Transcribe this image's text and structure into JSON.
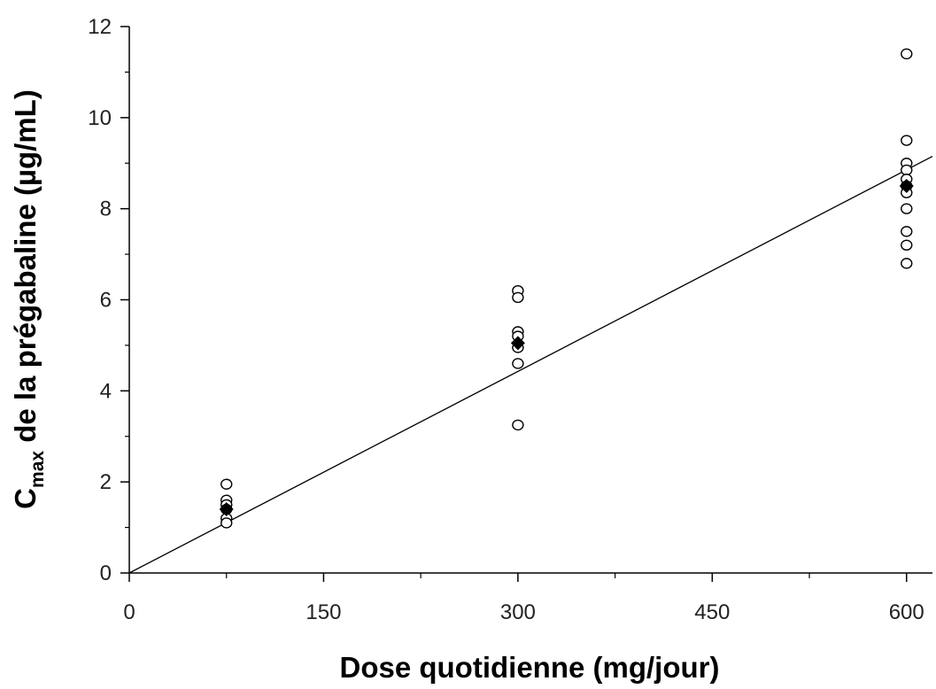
{
  "chart_data": {
    "type": "scatter",
    "xlabel": "Dose quotidienne (mg/jour)",
    "ylabel": {
      "prefix": "C",
      "subscript": "max",
      "suffix": " de la prégabaline (µg/mL)"
    },
    "xlim": [
      0,
      620
    ],
    "ylim": [
      0,
      12
    ],
    "x_ticks": [
      0,
      150,
      300,
      450,
      600
    ],
    "y_ticks": [
      0,
      2,
      4,
      6,
      8,
      10,
      12
    ],
    "grid": false,
    "individual_points": [
      {
        "x": 75,
        "y": 1.95
      },
      {
        "x": 75,
        "y": 1.6
      },
      {
        "x": 75,
        "y": 1.5
      },
      {
        "x": 75,
        "y": 1.4
      },
      {
        "x": 75,
        "y": 1.2
      },
      {
        "x": 75,
        "y": 1.1
      },
      {
        "x": 300,
        "y": 6.2
      },
      {
        "x": 300,
        "y": 6.05
      },
      {
        "x": 300,
        "y": 5.3
      },
      {
        "x": 300,
        "y": 5.2
      },
      {
        "x": 300,
        "y": 4.95
      },
      {
        "x": 300,
        "y": 4.6
      },
      {
        "x": 300,
        "y": 3.25
      },
      {
        "x": 600,
        "y": 11.4
      },
      {
        "x": 600,
        "y": 9.5
      },
      {
        "x": 600,
        "y": 9.0
      },
      {
        "x": 600,
        "y": 8.85
      },
      {
        "x": 600,
        "y": 8.65
      },
      {
        "x": 600,
        "y": 8.5
      },
      {
        "x": 600,
        "y": 8.35
      },
      {
        "x": 600,
        "y": 8.0
      },
      {
        "x": 600,
        "y": 7.5
      },
      {
        "x": 600,
        "y": 7.2
      },
      {
        "x": 600,
        "y": 6.8
      }
    ],
    "mean_points": [
      {
        "x": 75,
        "y": 1.4
      },
      {
        "x": 300,
        "y": 5.05
      },
      {
        "x": 600,
        "y": 8.5
      }
    ],
    "regression_line": {
      "x": [
        0,
        620
      ],
      "y": [
        0,
        9.15
      ]
    },
    "colors": {
      "open_marker": "#000000",
      "filled_marker": "#000000",
      "line": "#000000"
    }
  }
}
